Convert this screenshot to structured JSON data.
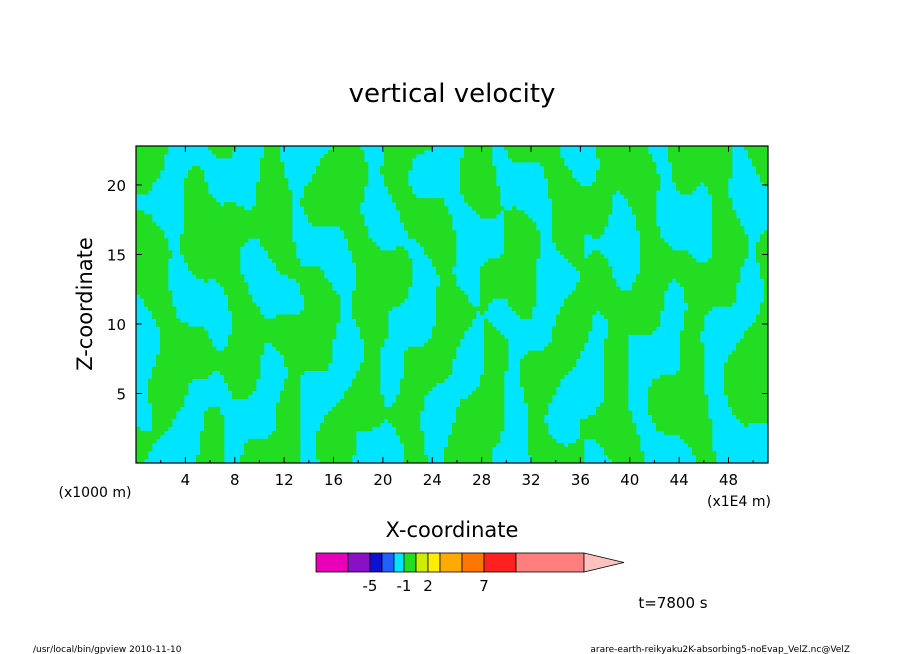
{
  "chart_data": {
    "type": "heatmap",
    "title": "vertical velocity",
    "xlabel": "X-coordinate",
    "ylabel": "Z-coordinate",
    "x_unit": "(x1E4 m)",
    "y_unit": "(x1000 m)",
    "xlim": [
      0,
      51.2
    ],
    "ylim": [
      0,
      22.8
    ],
    "x_ticks": [
      "4",
      "8",
      "12",
      "16",
      "20",
      "24",
      "28",
      "32",
      "36",
      "40",
      "44",
      "48"
    ],
    "y_ticks": [
      "5",
      "10",
      "15",
      "20"
    ],
    "dominant_levels": [
      {
        "name": "negative weak",
        "color": "#00e5ff"
      },
      {
        "name": "positive weak",
        "color": "#22dd22"
      }
    ],
    "colorbar": {
      "levels": [
        {
          "color": "#e800b8"
        },
        {
          "color": "#8a10c8"
        },
        {
          "color": "#1010d0"
        },
        {
          "color": "#2060ff"
        },
        {
          "color": "#00e5ff"
        },
        {
          "color": "#22dd22"
        },
        {
          "color": "#ccee00"
        },
        {
          "color": "#ffee00"
        },
        {
          "color": "#ffaa00"
        },
        {
          "color": "#ff7700"
        },
        {
          "color": "#ff2020"
        },
        {
          "color": "#ff7f7f"
        },
        {
          "color": "#ffc0c0"
        }
      ],
      "tick_labels": [
        "-5",
        "-1",
        "2",
        "7"
      ]
    },
    "time_label": "t=7800 s"
  },
  "footer": {
    "left": "/usr/local/bin/gpview  2010-11-10",
    "right": "arare-earth-reikyaku2K-absorbing5-noEvap_VelZ.nc@VelZ"
  }
}
